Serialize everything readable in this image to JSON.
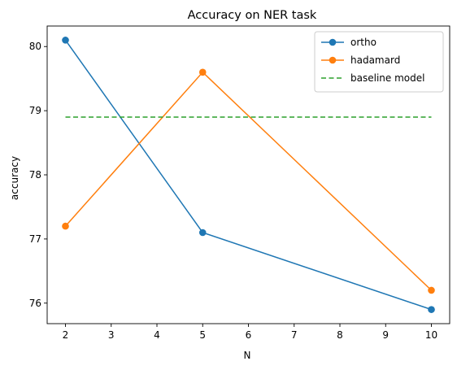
{
  "chart_data": {
    "type": "line",
    "title": "Accuracy on NER task",
    "xlabel": "N",
    "ylabel": "accuracy",
    "x": [
      2,
      5,
      10
    ],
    "xlim": [
      1.6,
      10.4
    ],
    "ylim": [
      75.68,
      80.32
    ],
    "xticks": [
      2,
      3,
      4,
      5,
      6,
      7,
      8,
      9,
      10
    ],
    "yticks": [
      76,
      77,
      78,
      79,
      80
    ],
    "grid": false,
    "legend_position": "upper right",
    "series": [
      {
        "name": "ortho",
        "values": [
          80.1,
          77.1,
          75.9
        ],
        "color": "#1f77b4",
        "style": "solid",
        "marker": "circle"
      },
      {
        "name": "hadamard",
        "values": [
          77.2,
          79.6,
          76.2
        ],
        "color": "#ff7f0e",
        "style": "solid",
        "marker": "circle"
      },
      {
        "name": "baseline model",
        "values": [
          78.9,
          78.9,
          78.9
        ],
        "color": "#2ca02c",
        "style": "dashed",
        "marker": "none"
      }
    ]
  }
}
